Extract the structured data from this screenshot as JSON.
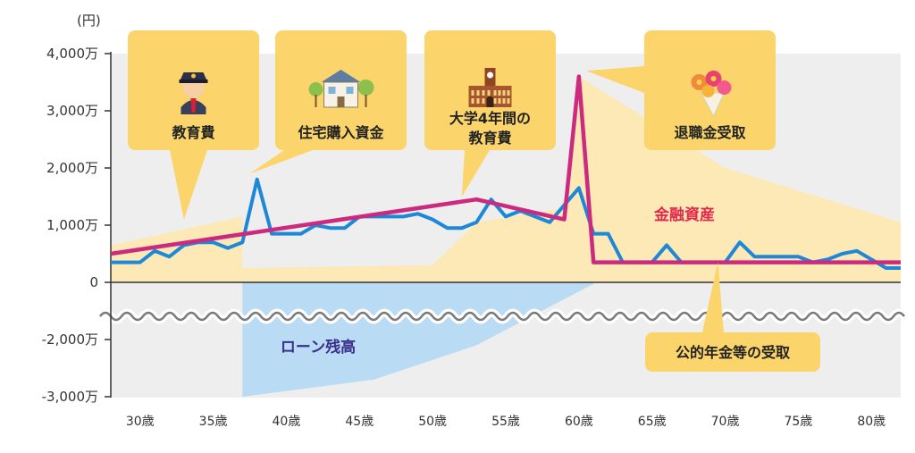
{
  "chart_data": {
    "type": "line",
    "unit_label": "(円)",
    "ylim": [
      -3000,
      4000
    ],
    "y_ticks": [
      {
        "value": 4000,
        "label": "4,000万"
      },
      {
        "value": 3000,
        "label": "3,000万"
      },
      {
        "value": 2000,
        "label": "2,000万"
      },
      {
        "value": 1000,
        "label": "1,000万"
      },
      {
        "value": 0,
        "label": "0"
      },
      {
        "value": -2000,
        "label": "-2,000万"
      },
      {
        "value": -3000,
        "label": "-3,000万"
      }
    ],
    "axis_break": "wavy break between 0 and -2,000万",
    "x_ticks": [
      "30歳",
      "35歳",
      "40歳",
      "45歳",
      "50歳",
      "55歳",
      "60歳",
      "65歳",
      "70歳",
      "75歳",
      "80歳"
    ],
    "series_labels": {
      "assets": "金融資産",
      "loan": "ローン残高"
    },
    "colors": {
      "assets_line": "#cc2a7f",
      "fluctuation_line": "#1e88d8",
      "assets_area": "#fde9b6",
      "loan_area": "#b9dbf3",
      "callout": "#fbd56b",
      "plot_bg": "#eeeeee",
      "assets_label": "#e0294b",
      "loan_label": "#3a2f8c"
    },
    "series": [
      {
        "name": "金融資産",
        "x": [
          28,
          53,
          59,
          60,
          61,
          82
        ],
        "values": [
          500,
          1450,
          1100,
          3600,
          350,
          350
        ]
      },
      {
        "x": [
          28,
          30,
          31,
          32,
          33,
          34,
          35,
          36,
          37,
          38,
          39,
          40,
          41,
          42,
          43,
          44,
          45,
          46,
          47,
          48,
          49,
          50,
          51,
          52,
          53,
          54,
          55,
          56,
          57,
          58,
          59,
          60,
          61,
          62,
          63,
          64,
          65,
          66,
          67,
          68,
          69,
          70,
          71,
          72,
          73,
          74,
          75,
          76,
          77,
          78,
          79,
          80,
          81,
          82
        ],
        "values": [
          350,
          350,
          550,
          450,
          650,
          700,
          700,
          600,
          700,
          1800,
          850,
          850,
          850,
          1000,
          950,
          950,
          1150,
          1150,
          1150,
          1150,
          1200,
          1100,
          950,
          950,
          1050,
          1450,
          1150,
          1250,
          1150,
          1050,
          1350,
          1650,
          850,
          850,
          350,
          350,
          350,
          650,
          350,
          350,
          350,
          350,
          700,
          450,
          450,
          450,
          450,
          350,
          400,
          500,
          550,
          400,
          250,
          250
        ]
      }
    ],
    "asset_area": {
      "x": [
        28,
        37,
        37,
        50,
        53,
        59,
        60,
        65,
        70,
        82
      ],
      "upper": [
        650,
        1150,
        250,
        300,
        1050,
        1300,
        3600,
        2800,
        2000,
        1050
      ]
    },
    "loan_area": {
      "x": [
        37,
        46,
        53,
        61
      ],
      "upper": [
        0,
        0,
        -1200,
        0
      ],
      "lower": [
        -3000,
        -2700,
        -2100,
        -50
      ]
    },
    "annotations": [
      {
        "id": "education",
        "label": "教育費",
        "icon": "student-icon",
        "x": 33,
        "y": 1100
      },
      {
        "id": "housing",
        "label": "住宅購入資金",
        "icon": "house-icon",
        "x": 37.5,
        "y": 1900
      },
      {
        "id": "university",
        "label": "大学4年間の\n教育費",
        "icon": "university-icon",
        "x": 52,
        "y": 1500
      },
      {
        "id": "retirement",
        "label": "退職金受取",
        "icon": "bouquet-icon",
        "x": 60.5,
        "y": 3700
      },
      {
        "id": "pension",
        "label": "公的年金等の受取",
        "icon": "",
        "x": 69.5,
        "y": 350
      }
    ]
  }
}
